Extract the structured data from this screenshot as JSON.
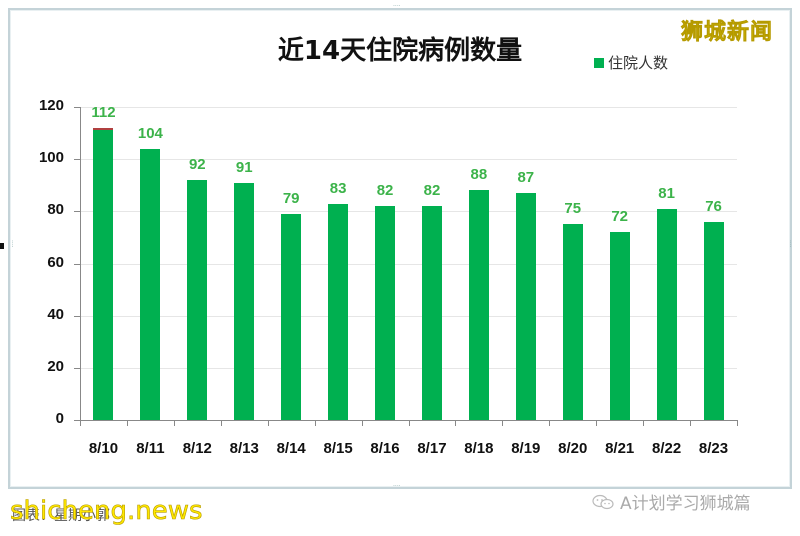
{
  "chart_data": {
    "type": "bar",
    "title": "近14天住院病例数量",
    "xlabel": "",
    "ylabel": "",
    "ylim": [
      0,
      120
    ],
    "yticks": [
      0,
      20,
      40,
      60,
      80,
      100,
      120
    ],
    "grid": true,
    "legend_position": "top-right",
    "categories": [
      "8/10",
      "8/11",
      "8/12",
      "8/13",
      "8/14",
      "8/15",
      "8/16",
      "8/17",
      "8/18",
      "8/19",
      "8/20",
      "8/21",
      "8/22",
      "8/23"
    ],
    "series": [
      {
        "name": "住院人数",
        "color": "#00b050",
        "values": [
          112,
          104,
          92,
          91,
          79,
          83,
          82,
          82,
          88,
          87,
          75,
          72,
          81,
          76
        ]
      }
    ],
    "data_label_color": "#3cb34a"
  },
  "chart": {
    "title": "近14天住院病例数量",
    "legend_label": "住院人数",
    "yticks": [
      "0",
      "20",
      "40",
      "60",
      "80",
      "100",
      "120"
    ],
    "categories": [
      "8/10",
      "8/11",
      "8/12",
      "8/13",
      "8/14",
      "8/15",
      "8/16",
      "8/17",
      "8/18",
      "8/19",
      "8/20",
      "8/21",
      "8/22",
      "8/23"
    ],
    "values": [
      "112",
      "104",
      "92",
      "91",
      "79",
      "83",
      "82",
      "82",
      "88",
      "87",
      "75",
      "72",
      "81",
      "76"
    ]
  },
  "overlay": {
    "brand": "狮城新闻",
    "credit": "图表：星期小郭",
    "watermark": "shicheng.news",
    "wechat_account": "A计划学习狮城篇"
  },
  "colors": {
    "bar": "#00b050",
    "label": "#3cb34a",
    "brand": "#ffe800"
  }
}
